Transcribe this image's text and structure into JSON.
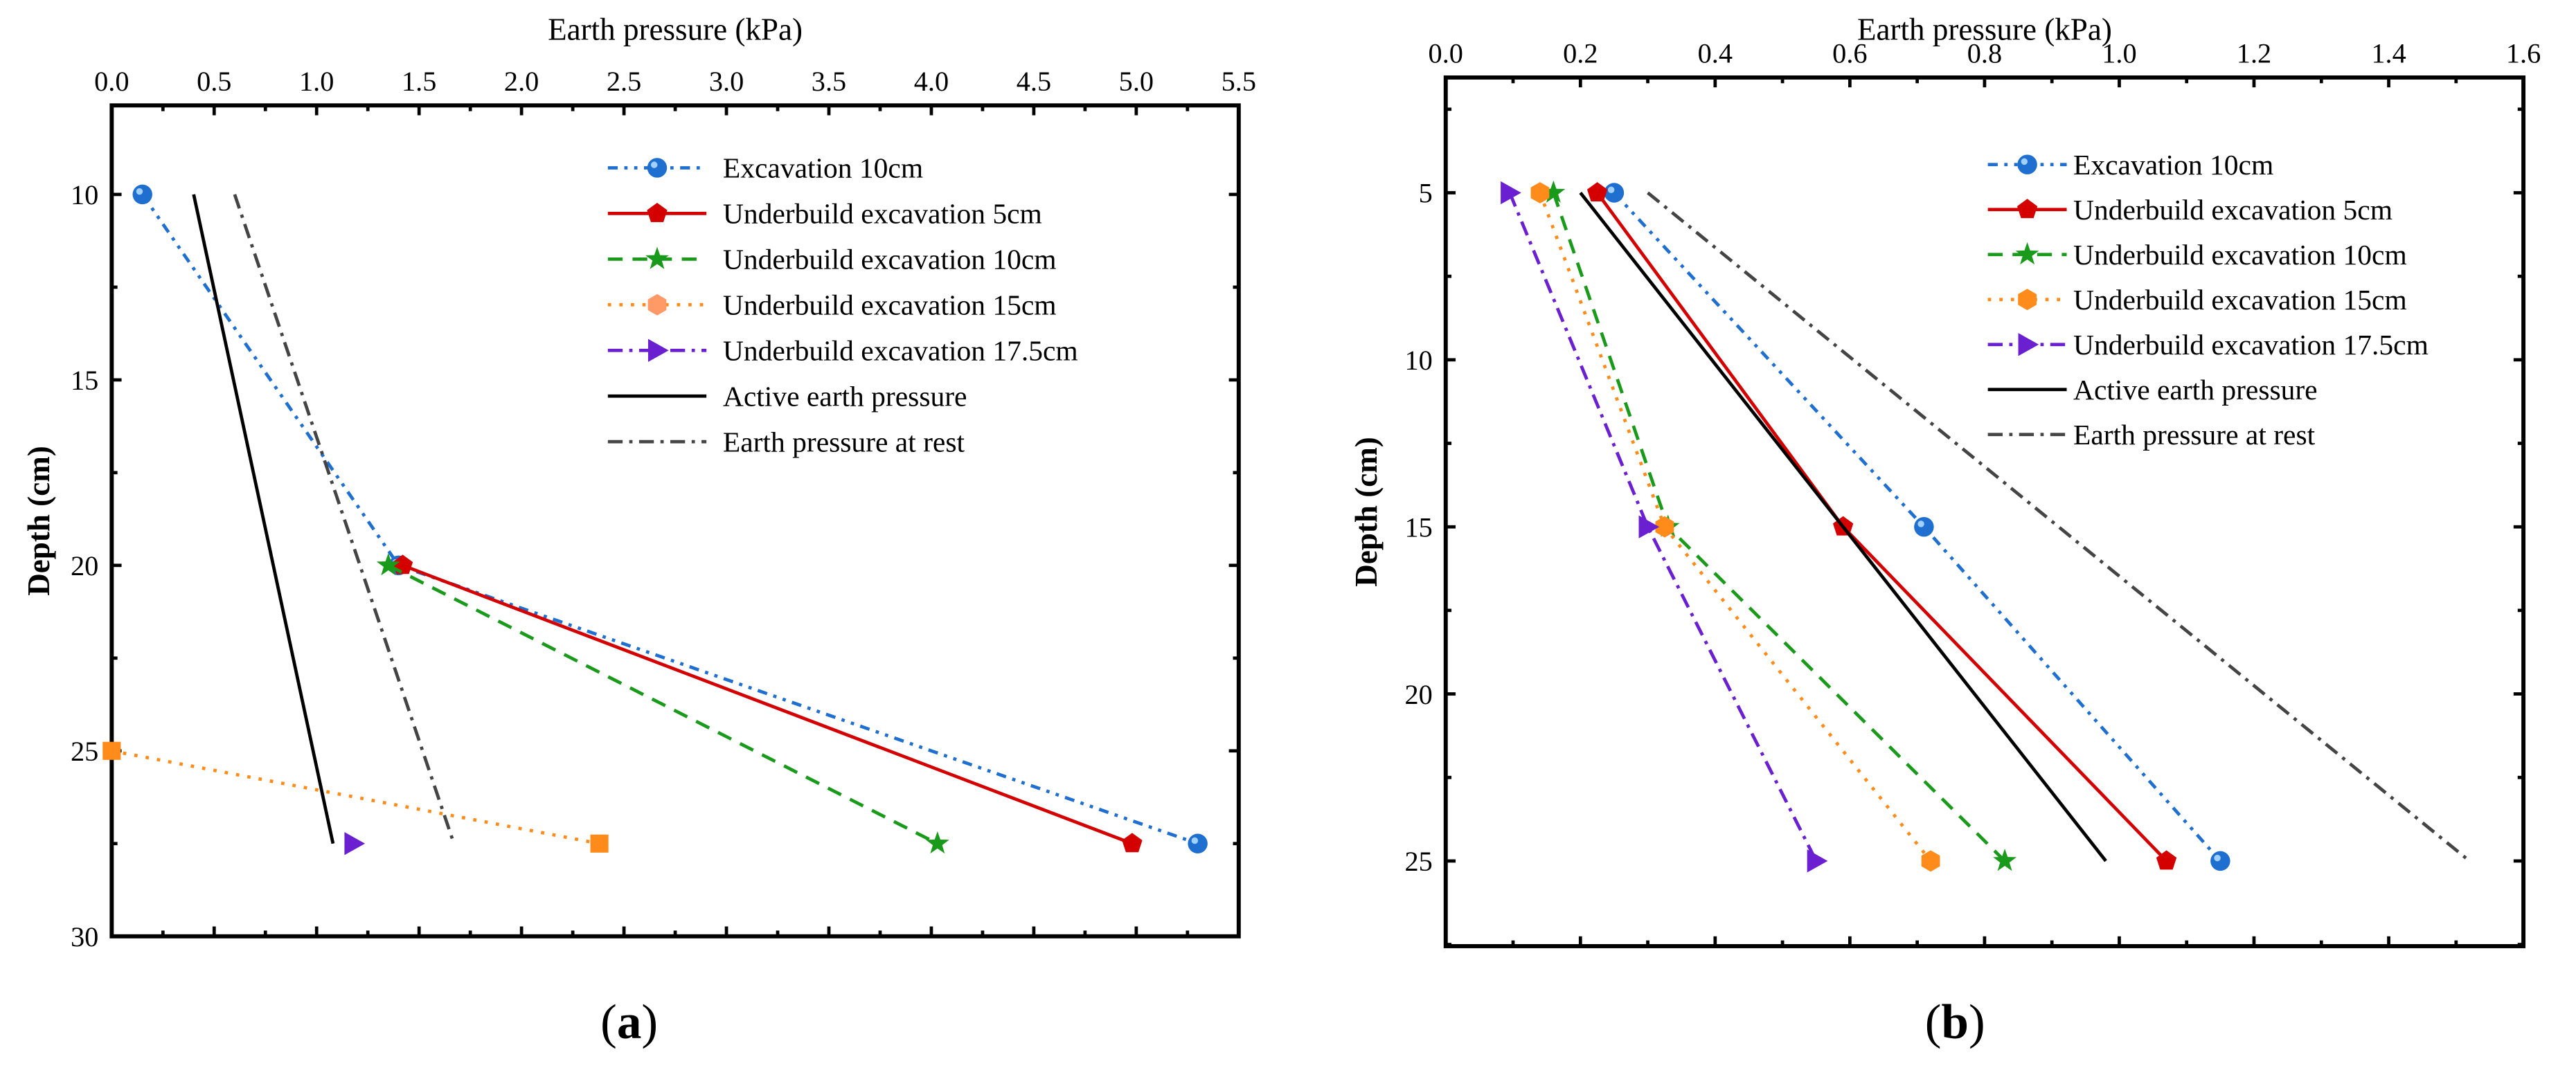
{
  "styles": {
    "Excavation 10cm": {
      "color": "#1f6fd0",
      "dash": "6 4 2 4 2 4",
      "marker": "circle",
      "legend_marker": "circle"
    },
    "Underbuild excavation 5cm": {
      "color": "#d40000",
      "dash": "",
      "marker": "pentagon",
      "legend_marker": "pentagon"
    },
    "Underbuild excavation 10cm": {
      "color": "#1a9a1a",
      "dash": "9 6",
      "marker": "star",
      "legend_marker": "star"
    },
    "Underbuild excavation 15cm": {
      "color": "#ff8c1a",
      "dash": "2 5",
      "marker": "hexagon",
      "legend_marker": "hexagon"
    },
    "Underbuild excavation 17.5cm": {
      "color": "#6a1fd0",
      "dash": "9 4 2 4",
      "marker": "triangle-right",
      "legend_marker": "triangle-right"
    },
    "Active earth pressure": {
      "color": "#000000",
      "dash": "",
      "marker": "none",
      "legend_marker": "none"
    },
    "Earth pressure at rest": {
      "color": "#444444",
      "dash": "9 4 2 4",
      "marker": "none",
      "legend_marker": "none"
    }
  },
  "chart_data": [
    {
      "id": "a",
      "type": "line",
      "caption_letter": "a",
      "xlabel": "Earth pressure (kPa)",
      "ylabel": "Depth (cm)",
      "xlim": [
        0,
        5.5
      ],
      "ylim": [
        7.6,
        30
      ],
      "y_inverted": true,
      "x_axis_position": "top",
      "xticks": [
        "0.0",
        "0.5",
        "1.0",
        "1.5",
        "2.0",
        "2.5",
        "3.0",
        "3.5",
        "4.0",
        "4.5",
        "5.0",
        "5.5"
      ],
      "yticks": [
        "10",
        "15",
        "20",
        "25",
        "30"
      ],
      "legend_position": "top-right",
      "series": [
        {
          "name": "Excavation 10cm",
          "x": [
            0.15,
            1.4,
            5.3
          ],
          "y": [
            10,
            20,
            27.5
          ]
        },
        {
          "name": "Underbuild excavation 5cm",
          "x": [
            1.42,
            4.98
          ],
          "y": [
            20,
            27.5
          ]
        },
        {
          "name": "Underbuild excavation 10cm",
          "x": [
            1.35,
            4.03
          ],
          "y": [
            20,
            27.5
          ]
        },
        {
          "name": "Underbuild excavation 15cm",
          "x": [
            0.0,
            2.38
          ],
          "y": [
            25,
            27.5
          ],
          "marker_override": "square"
        },
        {
          "name": "Underbuild excavation 17.5cm",
          "x": [
            1.18
          ],
          "y": [
            27.5
          ]
        },
        {
          "name": "Active earth pressure",
          "x": [
            0.4,
            1.08
          ],
          "y": [
            10,
            27.5
          ]
        },
        {
          "name": "Earth pressure at rest",
          "x": [
            0.6,
            1.67
          ],
          "y": [
            10,
            27.5
          ]
        }
      ]
    },
    {
      "id": "b",
      "type": "line",
      "caption_letter": "b",
      "xlabel": "Earth pressure (kPa)",
      "ylabel": "Depth (cm)",
      "xlim": [
        0,
        1.6
      ],
      "ylim": [
        1.55,
        27.55
      ],
      "y_inverted": true,
      "x_axis_position": "top",
      "xticks": [
        "0.0",
        "0.2",
        "0.4",
        "0.6",
        "0.8",
        "1.0",
        "1.2",
        "1.4",
        "1.6"
      ],
      "yticks": [
        "5",
        "10",
        "15",
        "20",
        "25"
      ],
      "legend_position": "top-right",
      "series": [
        {
          "name": "Excavation 10cm",
          "x": [
            0.25,
            0.71,
            1.15
          ],
          "y": [
            5,
            15,
            25
          ]
        },
        {
          "name": "Underbuild excavation 5cm",
          "x": [
            0.225,
            0.59,
            1.07
          ],
          "y": [
            5,
            15,
            25
          ]
        },
        {
          "name": "Underbuild excavation 10cm",
          "x": [
            0.16,
            0.33,
            0.83
          ],
          "y": [
            5,
            15,
            25
          ]
        },
        {
          "name": "Underbuild excavation 15cm",
          "x": [
            0.14,
            0.325,
            0.72
          ],
          "y": [
            5,
            15,
            25
          ]
        },
        {
          "name": "Underbuild excavation 17.5cm",
          "x": [
            0.095,
            0.3,
            0.55
          ],
          "y": [
            5,
            15,
            25
          ]
        },
        {
          "name": "Active earth pressure",
          "x": [
            0.2,
            0.98
          ],
          "y": [
            5,
            25
          ]
        },
        {
          "name": "Earth pressure at rest",
          "x": [
            0.3,
            1.52
          ],
          "y": [
            5,
            25
          ]
        }
      ]
    }
  ]
}
